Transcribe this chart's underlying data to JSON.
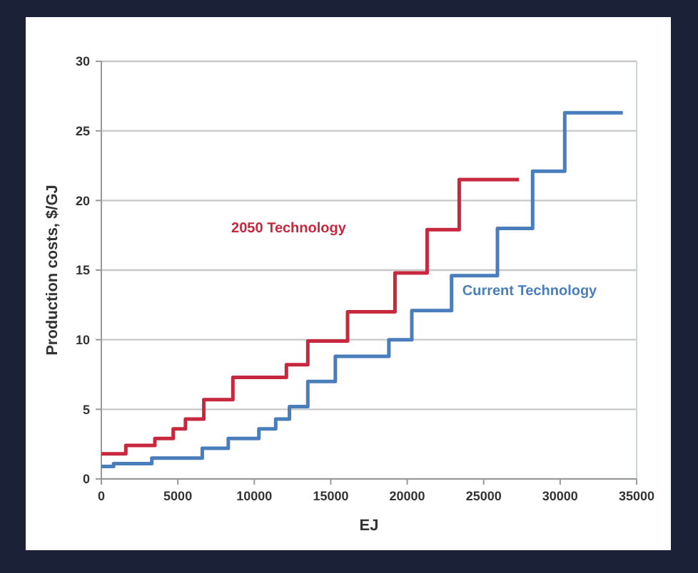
{
  "chart_data": {
    "type": "step",
    "xlabel": "EJ",
    "ylabel": "Production costs, $/GJ",
    "xlim": [
      0,
      35000
    ],
    "xticks": [
      0,
      5000,
      10000,
      15000,
      20000,
      25000,
      30000,
      35000
    ],
    "ylim": [
      0,
      30
    ],
    "yticks": [
      0,
      5,
      10,
      15,
      20,
      25,
      30
    ],
    "grid": "y",
    "legend": false,
    "series": [
      {
        "name": "2050 Technology",
        "color": "#c8283e",
        "x": [
          0,
          1600,
          3500,
          4700,
          5500,
          6700,
          8600,
          12100,
          13500,
          16100,
          19200,
          21300,
          23400,
          27300
        ],
        "values": [
          1.8,
          2.4,
          2.9,
          3.6,
          4.3,
          5.7,
          7.3,
          8.2,
          9.9,
          12,
          14.8,
          17.9,
          21.5,
          21.5
        ]
      },
      {
        "name": "Current Technology",
        "color": "#4a7ebb",
        "x": [
          0,
          800,
          3300,
          6600,
          8300,
          10300,
          11400,
          12300,
          13500,
          15300,
          18800,
          20300,
          22900,
          25900,
          28200,
          30300,
          34100
        ],
        "values": [
          0.9,
          1.1,
          1.5,
          2.2,
          2.9,
          3.6,
          4.3,
          5.2,
          7,
          8.8,
          10,
          12.1,
          14.6,
          18,
          22.1,
          26.3,
          26.3
        ]
      }
    ]
  }
}
